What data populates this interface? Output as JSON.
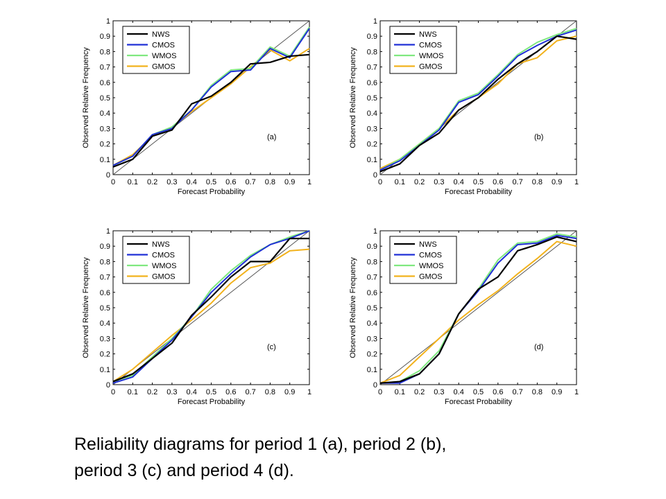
{
  "caption": {
    "line1": "Reliability diagrams for period 1 (a), period 2 (b),",
    "line2": "period 3 (c) and period 4 (d)."
  },
  "colors": {
    "NWS": "#000000",
    "CMOS": "#1f2fd6",
    "WMOS": "#7fe87f",
    "GMOS": "#f2b21c",
    "diagonal": "#555555"
  },
  "chart_data": [
    {
      "type": "line",
      "panel_label": "(a)",
      "xlabel": "Forecast Probability",
      "ylabel": "Observed Relative Frequency",
      "xlim": [
        0,
        1
      ],
      "ylim": [
        0,
        1
      ],
      "xticks": [
        "0",
        "0.1",
        "0.2",
        "0.3",
        "0.4",
        "0.5",
        "0.6",
        "0.7",
        "0.8",
        "0.9",
        "1"
      ],
      "yticks": [
        "0",
        "0.1",
        "0.2",
        "0.3",
        "0.4",
        "0.5",
        "0.6",
        "0.7",
        "0.8",
        "0.9",
        "1"
      ],
      "legend_position": "top-left",
      "diagonal": true,
      "x": [
        0.0,
        0.1,
        0.2,
        0.3,
        0.4,
        0.5,
        0.6,
        0.7,
        0.8,
        0.9,
        1.0
      ],
      "series": [
        {
          "name": "NWS",
          "values": [
            0.05,
            0.1,
            0.25,
            0.29,
            0.46,
            0.51,
            0.6,
            0.72,
            0.73,
            0.77,
            0.78
          ]
        },
        {
          "name": "CMOS",
          "values": [
            0.06,
            0.12,
            0.26,
            0.3,
            0.42,
            0.57,
            0.67,
            0.68,
            0.82,
            0.76,
            0.95
          ]
        },
        {
          "name": "WMOS",
          "values": [
            0.06,
            0.12,
            0.26,
            0.31,
            0.42,
            0.58,
            0.68,
            0.69,
            0.83,
            0.77,
            0.96
          ]
        },
        {
          "name": "GMOS",
          "values": [
            0.06,
            0.13,
            0.25,
            0.31,
            0.41,
            0.5,
            0.59,
            0.7,
            0.81,
            0.74,
            0.82
          ]
        }
      ]
    },
    {
      "type": "line",
      "panel_label": "(b)",
      "xlabel": "Forecast Probability",
      "ylabel": "Observed Relative Frequency",
      "xlim": [
        0,
        1
      ],
      "ylim": [
        0,
        1
      ],
      "xticks": [
        "0",
        "0.1",
        "0.2",
        "0.3",
        "0.4",
        "0.5",
        "0.6",
        "0.7",
        "0.8",
        "0.9",
        "1"
      ],
      "yticks": [
        "0",
        "0.1",
        "0.2",
        "0.3",
        "0.4",
        "0.5",
        "0.6",
        "0.7",
        "0.8",
        "0.9",
        "1"
      ],
      "legend_position": "top-left",
      "diagonal": true,
      "x": [
        0.0,
        0.1,
        0.2,
        0.3,
        0.4,
        0.5,
        0.6,
        0.7,
        0.8,
        0.9,
        1.0
      ],
      "series": [
        {
          "name": "NWS",
          "values": [
            0.02,
            0.07,
            0.19,
            0.27,
            0.42,
            0.5,
            0.62,
            0.72,
            0.8,
            0.9,
            0.88
          ]
        },
        {
          "name": "CMOS",
          "values": [
            0.03,
            0.09,
            0.19,
            0.29,
            0.47,
            0.52,
            0.64,
            0.77,
            0.84,
            0.9,
            0.94
          ]
        },
        {
          "name": "WMOS",
          "values": [
            0.03,
            0.1,
            0.2,
            0.3,
            0.48,
            0.53,
            0.65,
            0.78,
            0.86,
            0.91,
            0.95
          ]
        },
        {
          "name": "GMOS",
          "values": [
            0.04,
            0.1,
            0.2,
            0.3,
            0.42,
            0.5,
            0.59,
            0.72,
            0.76,
            0.87,
            0.9
          ]
        }
      ]
    },
    {
      "type": "line",
      "panel_label": "(c)",
      "xlabel": "Forecast Probability",
      "ylabel": "Observed Relative Frequency",
      "xlim": [
        0,
        1
      ],
      "ylim": [
        0,
        1
      ],
      "xticks": [
        "0",
        "0.1",
        "0.2",
        "0.3",
        "0.4",
        "0.5",
        "0.6",
        "0.7",
        "0.8",
        "0.9",
        "1"
      ],
      "yticks": [
        "0",
        "0.1",
        "0.2",
        "0.3",
        "0.4",
        "0.5",
        "0.6",
        "0.7",
        "0.8",
        "0.9",
        "1"
      ],
      "legend_position": "top-left",
      "diagonal": true,
      "x": [
        0.0,
        0.1,
        0.2,
        0.3,
        0.4,
        0.5,
        0.6,
        0.7,
        0.8,
        0.9,
        1.0
      ],
      "series": [
        {
          "name": "NWS",
          "values": [
            0.02,
            0.07,
            0.17,
            0.27,
            0.45,
            0.57,
            0.7,
            0.8,
            0.8,
            0.95,
            0.95
          ]
        },
        {
          "name": "CMOS",
          "values": [
            0.01,
            0.05,
            0.17,
            0.29,
            0.44,
            0.6,
            0.72,
            0.83,
            0.91,
            0.95,
            1.0
          ]
        },
        {
          "name": "WMOS",
          "values": [
            0.02,
            0.06,
            0.18,
            0.3,
            0.44,
            0.62,
            0.74,
            0.84,
            0.91,
            0.96,
            1.0
          ]
        },
        {
          "name": "GMOS",
          "values": [
            0.02,
            0.1,
            0.21,
            0.32,
            0.42,
            0.53,
            0.66,
            0.76,
            0.79,
            0.87,
            0.88
          ]
        }
      ]
    },
    {
      "type": "line",
      "panel_label": "(d)",
      "xlabel": "Forecast Probability",
      "ylabel": "Observed Relative Frequency",
      "xlim": [
        0,
        1
      ],
      "ylim": [
        0,
        1
      ],
      "xticks": [
        "0",
        "0.1",
        "0.2",
        "0.3",
        "0.4",
        "0.5",
        "0.6",
        "0.7",
        "0.8",
        "0.9",
        "1"
      ],
      "yticks": [
        "0",
        "0.1",
        "0.2",
        "0.3",
        "0.4",
        "0.5",
        "0.6",
        "0.7",
        "0.8",
        "0.9",
        "1"
      ],
      "legend_position": "top-left",
      "diagonal": true,
      "x": [
        0.0,
        0.1,
        0.2,
        0.3,
        0.4,
        0.5,
        0.6,
        0.7,
        0.8,
        0.9,
        1.0
      ],
      "series": [
        {
          "name": "NWS",
          "values": [
            0.01,
            0.02,
            0.07,
            0.2,
            0.46,
            0.62,
            0.7,
            0.87,
            0.91,
            0.96,
            0.93
          ]
        },
        {
          "name": "CMOS",
          "values": [
            0.01,
            0.01,
            0.07,
            0.2,
            0.46,
            0.61,
            0.79,
            0.91,
            0.92,
            0.97,
            0.95
          ]
        },
        {
          "name": "WMOS",
          "values": [
            0.01,
            0.02,
            0.09,
            0.22,
            0.46,
            0.62,
            0.81,
            0.92,
            0.93,
            0.98,
            0.96
          ]
        },
        {
          "name": "GMOS",
          "values": [
            0.01,
            0.06,
            0.18,
            0.3,
            0.42,
            0.52,
            0.61,
            0.72,
            0.82,
            0.93,
            0.9
          ]
        }
      ]
    }
  ]
}
